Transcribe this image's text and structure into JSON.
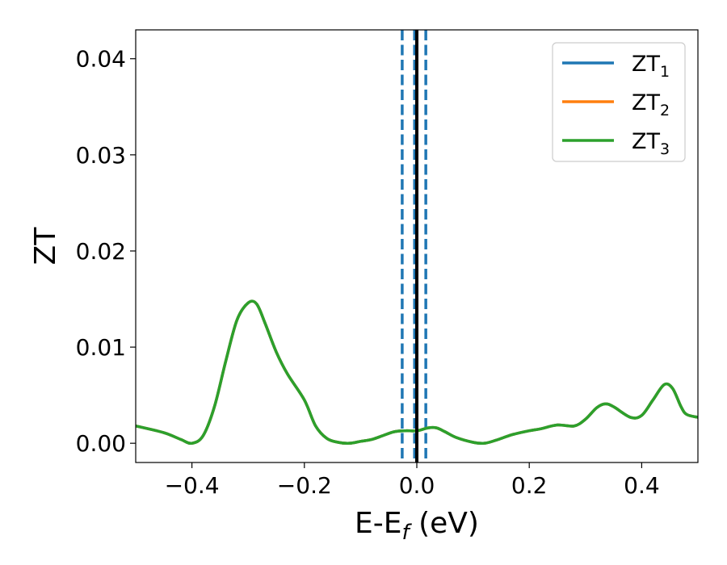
{
  "chart_data": {
    "type": "line",
    "title": "",
    "xlabel": {
      "main": "E-E",
      "sub": "f",
      "unit": " (eV)"
    },
    "ylabel": "ZT",
    "xlim": [
      -0.5,
      0.5
    ],
    "ylim": [
      -0.002,
      0.043
    ],
    "xticks": [
      -0.4,
      -0.2,
      0.0,
      0.2,
      0.4
    ],
    "xtick_labels": [
      "−0.4",
      "−0.2",
      "0.0",
      "0.2",
      "0.4"
    ],
    "yticks": [
      0.0,
      0.01,
      0.02,
      0.03,
      0.04
    ],
    "ytick_labels": [
      "0.00",
      "0.01",
      "0.02",
      "0.03",
      "0.04"
    ],
    "grid": false,
    "legend_position": "top-right",
    "x": [
      -0.5,
      -0.45,
      -0.42,
      -0.4,
      -0.38,
      -0.36,
      -0.34,
      -0.32,
      -0.3,
      -0.285,
      -0.27,
      -0.25,
      -0.23,
      -0.2,
      -0.18,
      -0.16,
      -0.14,
      -0.12,
      -0.1,
      -0.08,
      -0.06,
      -0.04,
      -0.02,
      0.0,
      0.02,
      0.035,
      0.05,
      0.07,
      0.1,
      0.12,
      0.14,
      0.17,
      0.2,
      0.22,
      0.25,
      0.28,
      0.3,
      0.32,
      0.335,
      0.35,
      0.38,
      0.4,
      0.42,
      0.44,
      0.455,
      0.47,
      0.48,
      0.5
    ],
    "series": [
      {
        "name": "ZT",
        "sub": "1",
        "color": "#1f77b4",
        "values": [
          0.0018,
          0.0011,
          0.0004,
          0.0,
          0.0008,
          0.0038,
          0.0085,
          0.0128,
          0.0146,
          0.0145,
          0.0125,
          0.0095,
          0.0072,
          0.0045,
          0.0018,
          0.0005,
          0.0001,
          0.0,
          0.0002,
          0.0004,
          0.0008,
          0.0012,
          0.0013,
          0.0013,
          0.0016,
          0.0016,
          0.0012,
          0.0006,
          0.0001,
          0.0,
          0.0003,
          0.0009,
          0.0013,
          0.0015,
          0.0019,
          0.0018,
          0.0025,
          0.0037,
          0.0041,
          0.0038,
          0.0027,
          0.0029,
          0.0045,
          0.0061,
          0.0057,
          0.0038,
          0.003,
          0.0027
        ]
      },
      {
        "name": "ZT",
        "sub": "2",
        "color": "#ff7f0e",
        "values": [
          0.0018,
          0.0011,
          0.0004,
          0.0,
          0.0008,
          0.0038,
          0.0085,
          0.0128,
          0.0146,
          0.0145,
          0.0125,
          0.0095,
          0.0072,
          0.0045,
          0.0018,
          0.0005,
          0.0001,
          0.0,
          0.0002,
          0.0004,
          0.0008,
          0.0012,
          0.0013,
          0.0013,
          0.0016,
          0.0016,
          0.0012,
          0.0006,
          0.0001,
          0.0,
          0.0003,
          0.0009,
          0.0013,
          0.0015,
          0.0019,
          0.0018,
          0.0025,
          0.0037,
          0.0041,
          0.0038,
          0.0027,
          0.0029,
          0.0045,
          0.0061,
          0.0057,
          0.0038,
          0.003,
          0.0027
        ]
      },
      {
        "name": "ZT",
        "sub": "3",
        "color": "#2ca02c",
        "values": [
          0.0018,
          0.0011,
          0.0004,
          0.0,
          0.0008,
          0.0038,
          0.0085,
          0.0128,
          0.0146,
          0.0145,
          0.0125,
          0.0095,
          0.0072,
          0.0045,
          0.0018,
          0.0005,
          0.0001,
          0.0,
          0.0002,
          0.0004,
          0.0008,
          0.0012,
          0.0013,
          0.0013,
          0.0016,
          0.0016,
          0.0012,
          0.0006,
          0.0001,
          0.0,
          0.0003,
          0.0009,
          0.0013,
          0.0015,
          0.0019,
          0.0018,
          0.0025,
          0.0037,
          0.0041,
          0.0038,
          0.0027,
          0.0029,
          0.0045,
          0.0061,
          0.0057,
          0.0038,
          0.003,
          0.0027
        ]
      }
    ],
    "vlines": [
      {
        "x": -0.026,
        "style": "dashed",
        "color": "#1f77b4"
      },
      {
        "x": -0.004,
        "style": "dashed",
        "color": "#1f77b4"
      },
      {
        "x": 0.016,
        "style": "dashed",
        "color": "#1f77b4"
      },
      {
        "x": 0.0,
        "style": "solid",
        "color": "#000000"
      }
    ]
  }
}
